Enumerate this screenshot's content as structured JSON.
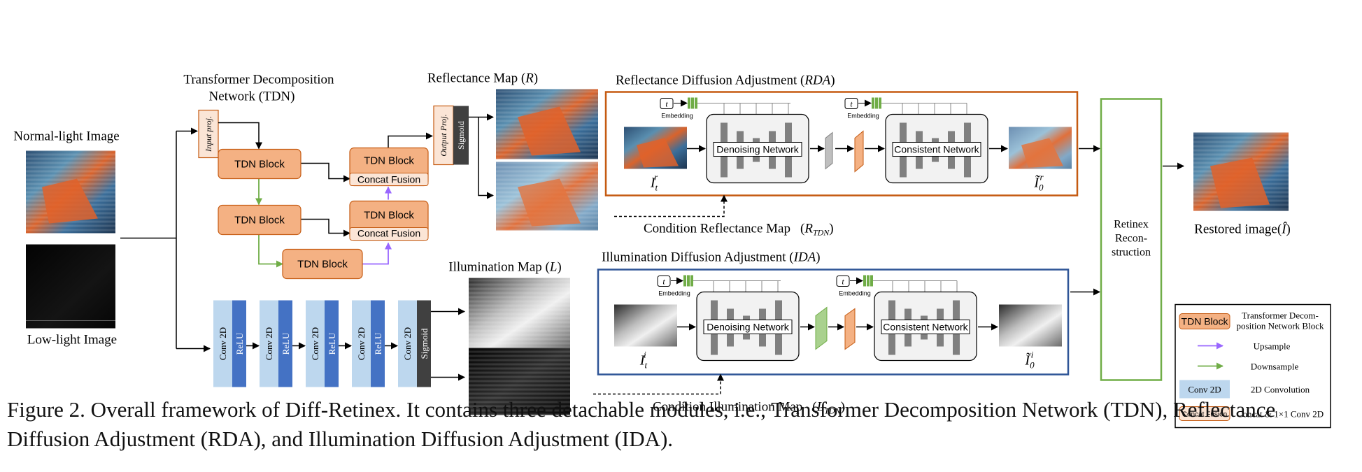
{
  "tdn": {
    "title_line1": "Transformer Decomposition",
    "title_line2": "Network (TDN)",
    "input_proj": "Input proj.",
    "output_proj": "Output Proj.",
    "sigmoid": "Sigmoid",
    "block_label": "TDN Block",
    "concat_fusion": "Concat Fusion"
  },
  "inputs": {
    "normal_light": "Normal-light Image",
    "low_light": "Low-light Image"
  },
  "conv": {
    "conv2d": "Conv 2D",
    "relu": "ReLU",
    "sigmoid": "Sigmoid"
  },
  "maps": {
    "reflectance": "Reflectance Map",
    "reflectance_sym": "R",
    "illumination": "Illumination Map",
    "illumination_sym": "L"
  },
  "rda": {
    "title": "Reflectance Diffusion Adjustment",
    "abbr": "RDA",
    "denoising": "Denoising Network",
    "consistent": "Consistent Network",
    "embedding": "Embedding",
    "t": "t",
    "in_main": "I",
    "in_sub": "t",
    "in_sup": "r",
    "out_main": "Ĩ",
    "out_sub": "0",
    "out_sup": "r",
    "condition": "Condition Reflectance Map",
    "condition_sym": "R",
    "condition_sub": "TDN"
  },
  "ida": {
    "title": "Illumination Diffusion Adjustment",
    "abbr": "IDA",
    "denoising": "Denoising Network",
    "consistent": "Consistent Network",
    "embedding": "Embedding",
    "t": "t",
    "in_main": "I",
    "in_sub": "t",
    "in_sup": "i",
    "out_main": "Ĩ",
    "out_sub": "0",
    "out_sup": "i",
    "condition": "Condition Illumination Map",
    "condition_sym": "L",
    "condition_sub": "TDN"
  },
  "retinex": {
    "line1": "Retinex",
    "line2": "Recon-",
    "line3": "struction"
  },
  "restored": {
    "label": "Restored image(",
    "sym": "Î",
    "close": ")"
  },
  "legend": {
    "tdn_block": "TDN Block",
    "tdn_desc1": "Transformer Decom-",
    "tdn_desc2": "position Network Block",
    "upsample": "Upsample",
    "downsample": "Downsample",
    "conv2d": "Conv 2D",
    "conv2d_desc": "2D Convolution",
    "concat_fusion": "Concat Fusion",
    "concat_desc": "Concat & 1×1 Conv 2D"
  },
  "colors": {
    "tdn_block": "#f4b183",
    "concat_fusion": "#fbe5d6",
    "conv": "#bdd7ee",
    "relu": "#4472c4",
    "sigmoid": "#404040",
    "rda_border": "#c55a11",
    "ida_border": "#2f5597",
    "retinex_border": "#70ad47",
    "upsample_arrow": "#9966ff",
    "downsample_arrow": "#70ad47"
  },
  "caption": {
    "text": "Figure 2. Overall framework of Diff-Retinex.  It contains three detachable modules, i.e., Transformer Decomposition Network (TDN), Reflectance Diffusion Adjustment (RDA), and Illumination Diffusion Adjustment (IDA)."
  }
}
